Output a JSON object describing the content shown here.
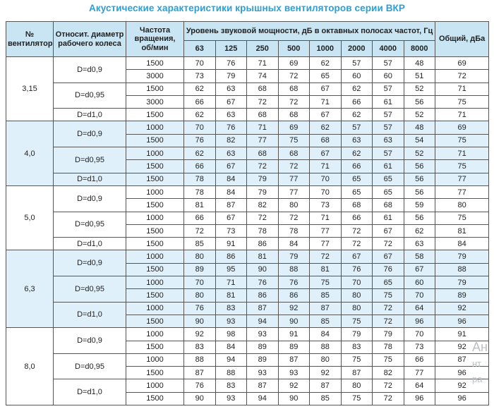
{
  "title": "Акустические характеристики крышных вентиляторов серии ВКР",
  "colors": {
    "title_color": "#2b9fd6",
    "header_bg": "#c9e5f3",
    "shaded_bg": "#dff0fa",
    "border_color": "#555555",
    "text_color": "#1f1f1f",
    "watermark_color": "#b9c1c6"
  },
  "watermark": {
    "line1": "Ан",
    "line2": "нт",
    "line3": "ра"
  },
  "table": {
    "headers": {
      "fan_number": "№ вентилятора",
      "diameter": "Относит. диаметр рабочего колеса",
      "speed": "Частота вращения, об/мин",
      "spl_group": "Уровень звуковой мощности, дБ в октавных полосах частот, Гц",
      "frequencies": [
        "63",
        "125",
        "250",
        "500",
        "1000",
        "2000",
        "4000",
        "8000"
      ],
      "total": "Общий, дБа"
    },
    "groups": [
      {
        "fan": "3,15",
        "shaded": false,
        "subgroups": [
          {
            "diameter": "D=d0,9",
            "rows": [
              {
                "speed": "1500",
                "levels": [
                  70,
                  76,
                  71,
                  69,
                  62,
                  57,
                  57,
                  48
                ],
                "total": 69
              },
              {
                "speed": "3000",
                "levels": [
                  73,
                  79,
                  74,
                  72,
                  65,
                  60,
                  60,
                  51
                ],
                "total": 72
              }
            ]
          },
          {
            "diameter": "D=d0,95",
            "rows": [
              {
                "speed": "1500",
                "levels": [
                  62,
                  63,
                  68,
                  68,
                  67,
                  62,
                  57,
                  52
                ],
                "total": 71
              },
              {
                "speed": "3000",
                "levels": [
                  66,
                  67,
                  72,
                  72,
                  71,
                  66,
                  61,
                  56
                ],
                "total": 75
              }
            ]
          },
          {
            "diameter": "D=d1,0",
            "rows": [
              {
                "speed": "1500",
                "levels": [
                  62,
                  63,
                  68,
                  68,
                  67,
                  62,
                  57,
                  52
                ],
                "total": 71
              }
            ]
          }
        ]
      },
      {
        "fan": "4,0",
        "shaded": true,
        "subgroups": [
          {
            "diameter": "D=d0,9",
            "rows": [
              {
                "speed": "1000",
                "levels": [
                  70,
                  76,
                  71,
                  69,
                  62,
                  57,
                  57,
                  48
                ],
                "total": 69
              },
              {
                "speed": "1500",
                "levels": [
                  76,
                  82,
                  77,
                  75,
                  68,
                  63,
                  63,
                  54
                ],
                "total": 75
              }
            ]
          },
          {
            "diameter": "D=d0,95",
            "rows": [
              {
                "speed": "1000",
                "levels": [
                  62,
                  63,
                  68,
                  68,
                  67,
                  62,
                  57,
                  52
                ],
                "total": 71
              },
              {
                "speed": "1500",
                "levels": [
                  66,
                  67,
                  72,
                  72,
                  71,
                  66,
                  61,
                  56
                ],
                "total": 75
              }
            ]
          },
          {
            "diameter": "D=d1,0",
            "rows": [
              {
                "speed": "1500",
                "levels": [
                  78,
                  84,
                  79,
                  77,
                  70,
                  65,
                  65,
                  56
                ],
                "total": 77
              }
            ]
          }
        ]
      },
      {
        "fan": "5,0",
        "shaded": false,
        "subgroups": [
          {
            "diameter": "D=d0,9",
            "rows": [
              {
                "speed": "1000",
                "levels": [
                  78,
                  84,
                  79,
                  77,
                  70,
                  65,
                  65,
                  56
                ],
                "total": 77
              },
              {
                "speed": "1500",
                "levels": [
                  81,
                  87,
                  82,
                  80,
                  73,
                  68,
                  68,
                  59
                ],
                "total": 80
              }
            ]
          },
          {
            "diameter": "D=d0,95",
            "rows": [
              {
                "speed": "1000",
                "levels": [
                  66,
                  67,
                  72,
                  72,
                  71,
                  66,
                  61,
                  56
                ],
                "total": 75
              },
              {
                "speed": "1500",
                "levels": [
                  72,
                  73,
                  78,
                  78,
                  77,
                  72,
                  67,
                  62
                ],
                "total": 81
              }
            ]
          },
          {
            "diameter": "D=d1,0",
            "rows": [
              {
                "speed": "1500",
                "levels": [
                  85,
                  91,
                  86,
                  84,
                  77,
                  72,
                  72,
                  63
                ],
                "total": 84
              }
            ]
          }
        ]
      },
      {
        "fan": "6,3",
        "shaded": true,
        "subgroups": [
          {
            "diameter": "D=d0,9",
            "rows": [
              {
                "speed": "1000",
                "levels": [
                  80,
                  86,
                  81,
                  79,
                  72,
                  67,
                  67,
                  58
                ],
                "total": 79
              },
              {
                "speed": "1500",
                "levels": [
                  89,
                  95,
                  90,
                  88,
                  81,
                  76,
                  76,
                  67
                ],
                "total": 88
              }
            ]
          },
          {
            "diameter": "D=d0,95",
            "rows": [
              {
                "speed": "1000",
                "levels": [
                  70,
                  71,
                  76,
                  76,
                  75,
                  70,
                  65,
                  60
                ],
                "total": 79
              },
              {
                "speed": "1500",
                "levels": [
                  80,
                  81,
                  86,
                  86,
                  85,
                  80,
                  75,
                  70
                ],
                "total": 89
              }
            ]
          },
          {
            "diameter": "D=d1,0",
            "rows": [
              {
                "speed": "1000",
                "levels": [
                  76,
                  83,
                  87,
                  92,
                  87,
                  80,
                  72,
                  64
                ],
                "total": 92
              },
              {
                "speed": "1500",
                "levels": [
                  90,
                  93,
                  94,
                  90,
                  85,
                  75,
                  72,
                  96
                ],
                "total": 96
              }
            ]
          }
        ]
      },
      {
        "fan": "8,0",
        "shaded": false,
        "subgroups": [
          {
            "diameter": "D=d0,9",
            "rows": [
              {
                "speed": "1000",
                "levels": [
                  92,
                  98,
                  93,
                  91,
                  84,
                  79,
                  79,
                  70
                ],
                "total": 91
              },
              {
                "speed": "1500",
                "levels": [
                  83,
                  84,
                  89,
                  89,
                  88,
                  83,
                  78,
                  73
                ],
                "total": 92
              }
            ]
          },
          {
            "diameter": "D=d0,95",
            "rows": [
              {
                "speed": "1000",
                "levels": [
                  88,
                  94,
                  89,
                  87,
                  80,
                  75,
                  75,
                  66
                ],
                "total": 87
              },
              {
                "speed": "1500",
                "levels": [
                  87,
                  88,
                  93,
                  93,
                  92,
                  87,
                  82,
                  77
                ],
                "total": 96
              }
            ]
          },
          {
            "diameter": "D=d1,0",
            "rows": [
              {
                "speed": "1000",
                "levels": [
                  76,
                  83,
                  87,
                  92,
                  87,
                  80,
                  72,
                  64
                ],
                "total": 92
              },
              {
                "speed": "1500",
                "levels": [
                  90,
                  93,
                  94,
                  90,
                  85,
                  75,
                  72,
                  96
                ],
                "total": 96
              }
            ]
          }
        ]
      }
    ]
  }
}
